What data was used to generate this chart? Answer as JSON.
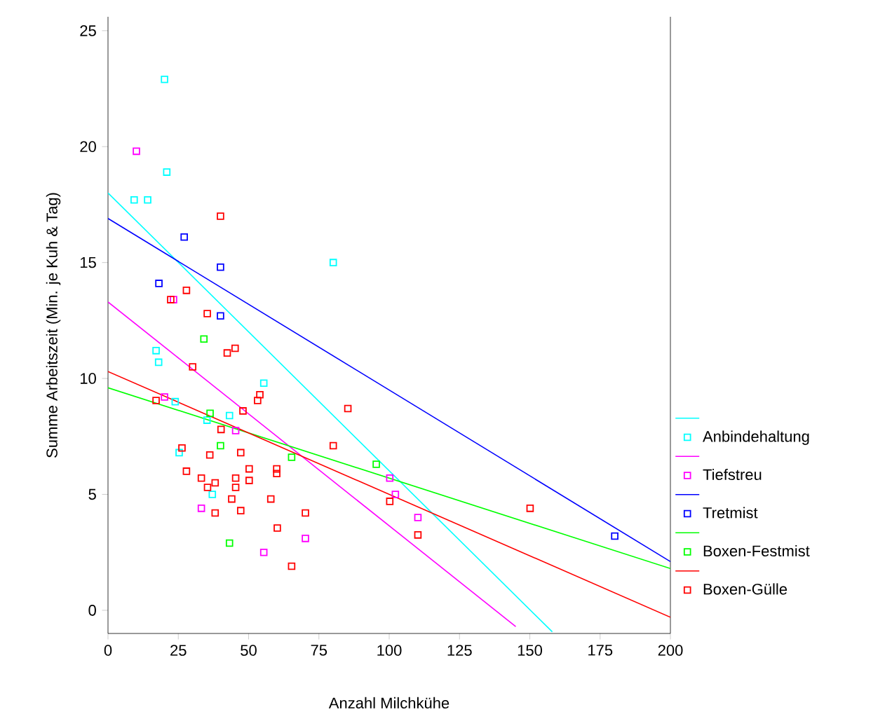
{
  "chart_data": {
    "type": "scatter",
    "xlabel": "Anzahl Milchkühe",
    "ylabel": "Summe Arbeitszeit (Min. je Kuh & Tag)",
    "xlim": [
      0,
      200
    ],
    "ylim": [
      -1,
      25.6
    ],
    "xticks": [
      0,
      25,
      50,
      75,
      100,
      125,
      150,
      175,
      200
    ],
    "yticks": [
      0,
      5,
      10,
      15,
      20,
      25
    ],
    "marker": "square",
    "legend": "right",
    "grid": false,
    "series": [
      {
        "type": "line",
        "marker": "none",
        "color": "#00ffff",
        "x": [
          0,
          158
        ],
        "values": [
          18.0,
          -0.93
        ]
      },
      {
        "name": "Anbindehaltung",
        "color": "#00ffff",
        "x": [
          20.1,
          20.9,
          9.3,
          14.1,
          80.1,
          17.1,
          18,
          55.4,
          23.9,
          35.2,
          43.2,
          25.3,
          37.1
        ],
        "values": [
          22.9,
          18.9,
          17.7,
          17.7,
          15.0,
          11.2,
          10.7,
          9.8,
          9.0,
          8.2,
          8.4,
          6.8,
          5.0
        ]
      },
      {
        "type": "line",
        "marker": "none",
        "color": "#ff00ff",
        "x": [
          0,
          145
        ],
        "values": [
          13.3,
          -0.7
        ]
      },
      {
        "name": "Tiefstreu",
        "color": "#ff00ff",
        "x": [
          10.1,
          23.3,
          20.1,
          45.4,
          100.2,
          102.2,
          110.2,
          33.2,
          70.2,
          55.4
        ],
        "values": [
          19.8,
          13.4,
          9.2,
          7.75,
          5.7,
          5.0,
          4.0,
          4.4,
          3.1,
          2.5
        ]
      },
      {
        "type": "line",
        "marker": "none",
        "color": "#0000ff",
        "x": [
          0,
          200
        ],
        "values": [
          16.9,
          2.1
        ]
      },
      {
        "name": "Tretmist",
        "color": "#0000ff",
        "x": [
          27.1,
          40.0,
          18.1,
          40.0,
          180.2
        ],
        "values": [
          16.1,
          14.8,
          14.1,
          12.7,
          3.2
        ]
      },
      {
        "type": "line",
        "marker": "none",
        "color": "#00ff00",
        "x": [
          0,
          200
        ],
        "values": [
          9.6,
          1.8
        ]
      },
      {
        "name": "Boxen-Festmist",
        "color": "#00ff00",
        "x": [
          34.1,
          36.3,
          40.0,
          65.3,
          95.4,
          43.2
        ],
        "values": [
          11.7,
          8.5,
          7.1,
          6.6,
          6.3,
          2.9
        ]
      },
      {
        "type": "line",
        "marker": "none",
        "color": "#ff0000",
        "x": [
          0,
          200
        ],
        "values": [
          10.3,
          -0.3
        ]
      },
      {
        "name": "Boxen-Gülle",
        "color": "#ff0000",
        "x": [
          40.0,
          27.9,
          22.3,
          35.3,
          42.4,
          45.2,
          30.1,
          17.1,
          48.0,
          54.0,
          53.2,
          85.3,
          40.2,
          80.1,
          26.3,
          36.2,
          47.2,
          27.9,
          33.2,
          38.1,
          35.4,
          45.4,
          45.4,
          50.2,
          50.2,
          60.0,
          60.0,
          44.0,
          57.9,
          38.1,
          47.2,
          70.2,
          60.2,
          65.3,
          100.2,
          110.2,
          150.1
        ],
        "values": [
          17.0,
          13.8,
          13.4,
          12.8,
          11.1,
          11.3,
          10.5,
          9.05,
          8.6,
          9.3,
          9.05,
          8.7,
          7.8,
          7.1,
          7.0,
          6.7,
          6.8,
          6.0,
          5.7,
          5.5,
          5.3,
          5.7,
          5.3,
          6.1,
          5.6,
          6.1,
          5.9,
          4.8,
          4.8,
          4.2,
          4.3,
          4.2,
          3.55,
          1.9,
          4.7,
          3.25,
          4.4
        ]
      }
    ]
  }
}
